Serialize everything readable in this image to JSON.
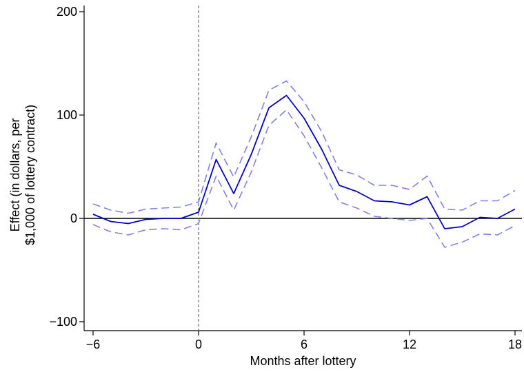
{
  "chart_data": {
    "type": "line",
    "xlabel": "Months after lottery",
    "ylabel": "Effect (in dollars, per\n$1,000 of lottery contract)",
    "ylabel_lines": [
      "Effect (in dollars, per",
      "$1,000 of lottery contract)"
    ],
    "xlim": [
      -6,
      18
    ],
    "ylim": [
      -100,
      200
    ],
    "x_ticks": [
      -6,
      0,
      6,
      12,
      18
    ],
    "x_tick_labels": [
      "−6",
      "0",
      "6",
      "12",
      "18"
    ],
    "y_ticks": [
      -100,
      0,
      100,
      200
    ],
    "y_tick_labels": [
      "−100",
      "0",
      "100",
      "200"
    ],
    "reference_lines": {
      "horizontal_y": 0,
      "vertical_x": 0
    },
    "grid": false,
    "legend": "none",
    "x": [
      -6,
      -5,
      -4,
      -3,
      -2,
      -1,
      0,
      1,
      2,
      3,
      4,
      5,
      6,
      7,
      8,
      9,
      10,
      11,
      12,
      13,
      14,
      15,
      16,
      17,
      18
    ],
    "series": [
      {
        "role": "estimate",
        "style": "solid",
        "color": "#0000cc",
        "values": [
          4,
          -3,
          -5,
          -1,
          0,
          0,
          6,
          57,
          24,
          62,
          107,
          119,
          97,
          67,
          32,
          26,
          17,
          16,
          13,
          21,
          -10,
          -8,
          1,
          0,
          9
        ]
      },
      {
        "role": "upper-ci",
        "style": "dashed",
        "color": "#8080ee",
        "values": [
          14,
          8,
          5,
          9,
          10,
          11,
          16,
          73,
          40,
          79,
          124,
          133,
          113,
          84,
          47,
          42,
          32,
          32,
          28,
          41,
          9,
          8,
          17,
          17,
          27
        ]
      },
      {
        "role": "lower-ci",
        "style": "dashed",
        "color": "#8080ee",
        "values": [
          -6,
          -13,
          -16,
          -11,
          -10,
          -11,
          -5,
          41,
          8,
          45,
          90,
          105,
          80,
          49,
          16,
          10,
          2,
          0,
          -2,
          0,
          -28,
          -23,
          -15,
          -16,
          -7
        ]
      }
    ]
  }
}
